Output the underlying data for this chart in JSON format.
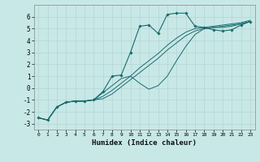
{
  "xlabel": "Humidex (Indice chaleur)",
  "background_color": "#c8e8e8",
  "grid_color": "#d0d0d0",
  "line_color": "#1a6b6b",
  "xlim": [
    -0.5,
    23.5
  ],
  "ylim": [
    -3.5,
    7.0
  ],
  "xticks": [
    0,
    1,
    2,
    3,
    4,
    5,
    6,
    7,
    8,
    9,
    10,
    11,
    12,
    13,
    14,
    15,
    16,
    17,
    18,
    19,
    20,
    21,
    22,
    23
  ],
  "yticks": [
    -3,
    -2,
    -1,
    0,
    1,
    2,
    3,
    4,
    5,
    6
  ],
  "main_x": [
    0,
    1,
    2,
    3,
    4,
    5,
    6,
    7,
    8,
    9,
    10,
    11,
    12,
    13,
    14,
    15,
    16,
    17,
    18,
    19,
    20,
    21,
    22,
    23
  ],
  "main_y": [
    -2.5,
    -2.7,
    -1.6,
    -1.2,
    -1.1,
    -1.1,
    -1.0,
    -0.3,
    1.0,
    1.1,
    3.0,
    5.2,
    5.3,
    4.6,
    6.2,
    6.3,
    6.3,
    5.2,
    5.1,
    4.9,
    4.8,
    4.9,
    5.3,
    5.6
  ],
  "line2_x": [
    0,
    1,
    2,
    3,
    4,
    5,
    6,
    7,
    8,
    9,
    10,
    11,
    12,
    13,
    14,
    15,
    16,
    17,
    18,
    19,
    20,
    21,
    22,
    23
  ],
  "line2_y": [
    -2.5,
    -2.7,
    -1.6,
    -1.2,
    -1.1,
    -1.1,
    -1.0,
    -0.9,
    -0.5,
    0.1,
    0.7,
    1.3,
    1.9,
    2.5,
    3.2,
    3.8,
    4.4,
    4.8,
    5.0,
    5.1,
    5.2,
    5.3,
    5.4,
    5.6
  ],
  "line3_x": [
    0,
    1,
    2,
    3,
    4,
    5,
    6,
    7,
    8,
    9,
    10,
    11,
    12,
    13,
    14,
    15,
    16,
    17,
    18,
    19,
    20,
    21,
    22,
    23
  ],
  "line3_y": [
    -2.5,
    -2.7,
    -1.6,
    -1.2,
    -1.1,
    -1.1,
    -1.0,
    -0.7,
    -0.2,
    0.4,
    1.0,
    1.7,
    2.3,
    2.9,
    3.6,
    4.2,
    4.7,
    5.0,
    5.1,
    5.2,
    5.3,
    5.4,
    5.5,
    5.7
  ],
  "line4_x": [
    0,
    1,
    2,
    3,
    4,
    5,
    6,
    7,
    8,
    9,
    10,
    11,
    12,
    13,
    14,
    15,
    16,
    17,
    18,
    19,
    20,
    21,
    22,
    23
  ],
  "line4_y": [
    -2.5,
    -2.7,
    -1.6,
    -1.2,
    -1.1,
    -1.1,
    -1.0,
    -0.4,
    0.2,
    0.8,
    1.0,
    0.4,
    -0.1,
    0.2,
    1.0,
    2.3,
    3.5,
    4.5,
    5.0,
    5.1,
    5.1,
    5.2,
    5.4,
    5.6
  ]
}
